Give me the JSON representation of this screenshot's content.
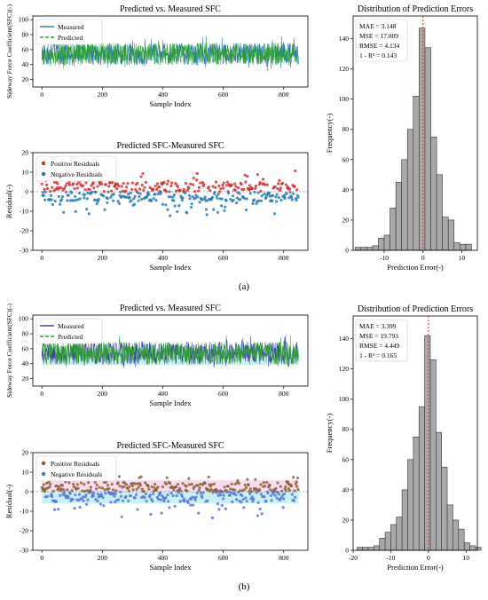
{
  "panel_labels": [
    "(a)",
    "(b)"
  ],
  "colors": {
    "measured_a": "#1f77b4",
    "predicted_a": "#2ca02c",
    "positive_a": "#d62728",
    "negative_a": "#1f77b4",
    "measured_b": "#3a3ab0",
    "predicted_b": "#2ca02c",
    "band_b": "#a8e8f0",
    "res_band_b": "#f4c6e8",
    "positive_b": "#8b5a2b",
    "negative_b": "#4f6fd8",
    "hist_fill": "#a9a9a9",
    "hist_edge": "#333333",
    "zero_line": "#d62728"
  },
  "chart_data": [
    {
      "id": "a-line",
      "type": "line",
      "title": "Predicted vs. Measured SFC",
      "xlabel": "Sample Index",
      "ylabel": "Sideway Force Coefficient(SFC)(-)",
      "xlim": [
        -30,
        880
      ],
      "ylim": [
        10,
        105
      ],
      "xticks": [
        0,
        200,
        400,
        600,
        800
      ],
      "yticks": [
        20,
        40,
        60,
        80,
        100
      ],
      "legend": "top-left",
      "n": 850,
      "range": [
        35,
        78
      ],
      "series": [
        {
          "name": "Measured"
        },
        {
          "name": "Predicted"
        }
      ]
    },
    {
      "id": "a-res",
      "type": "scatter",
      "title": "Predicted SFC-Measured SFC",
      "xlabel": "Sample Index",
      "ylabel": "Residual(-)",
      "xlim": [
        -30,
        880
      ],
      "ylim": [
        -30,
        20
      ],
      "xticks": [
        0,
        200,
        400,
        600,
        800
      ],
      "yticks": [
        -30,
        -20,
        -10,
        0,
        10,
        20
      ],
      "legend": "top-left",
      "n": 850,
      "range": [
        -18,
        12
      ],
      "series": [
        {
          "name": "Positive Residuals"
        },
        {
          "name": "Negative Residuals"
        }
      ]
    },
    {
      "id": "a-hist",
      "type": "bar",
      "title": "Distribution of Prediction Errors",
      "xlabel": "Prediction Error(-)",
      "ylabel": "Frequency(-)",
      "xlim": [
        -18,
        14
      ],
      "ylim": [
        0,
        155
      ],
      "xticks": [
        -10,
        0,
        10
      ],
      "yticks": [
        0,
        20,
        40,
        60,
        80,
        100,
        120,
        140
      ],
      "bin_width": 1.5,
      "bin_edges_start": -17.5,
      "values": [
        2,
        2,
        2,
        3,
        8,
        10,
        28,
        45,
        60,
        80,
        102,
        147,
        134,
        75,
        50,
        22,
        20,
        5,
        4,
        4
      ],
      "stats": [
        "MAE  = 3.148",
        "MSE  = 17.089",
        "RMSE = 4.134",
        "1 - R² = 0.143"
      ]
    },
    {
      "id": "b-line",
      "type": "line",
      "title": "Predicted vs. Measured SFC",
      "xlabel": "Sample Index",
      "ylabel": "Sideway Force Coefficient(SFC)(-)",
      "xlim": [
        -30,
        880
      ],
      "ylim": [
        10,
        105
      ],
      "xticks": [
        0,
        200,
        400,
        600,
        800
      ],
      "yticks": [
        20,
        40,
        60,
        80,
        100
      ],
      "legend": "top-left",
      "n": 850,
      "range": [
        35,
        78
      ],
      "series": [
        {
          "name": "Measured"
        },
        {
          "name": "Predicted"
        }
      ]
    },
    {
      "id": "b-res",
      "type": "scatter",
      "title": "Predicted SFC-Measured SFC",
      "xlabel": "Sample Index",
      "ylabel": "Residual(-)",
      "xlim": [
        -30,
        880
      ],
      "ylim": [
        -30,
        20
      ],
      "xticks": [
        0,
        200,
        400,
        600,
        800
      ],
      "yticks": [
        -30,
        -20,
        -10,
        0,
        10,
        20
      ],
      "legend": "top-left",
      "n": 850,
      "range": [
        -18,
        12
      ],
      "series": [
        {
          "name": "Positive Residuals"
        },
        {
          "name": "Negative Residuals"
        }
      ]
    },
    {
      "id": "b-hist",
      "type": "bar",
      "title": "Distribution of Prediction Errors",
      "xlabel": "Prediction Error(-)",
      "ylabel": "Frequency(-)",
      "xlim": [
        -20,
        13
      ],
      "ylim": [
        0,
        155
      ],
      "xticks": [
        -20,
        -10,
        0,
        10
      ],
      "yticks": [
        0,
        20,
        40,
        60,
        80,
        100,
        120,
        140
      ],
      "bin_width": 1.5,
      "bin_edges_start": -19,
      "values": [
        2,
        2,
        2,
        3,
        8,
        12,
        17,
        22,
        40,
        60,
        75,
        95,
        142,
        126,
        78,
        55,
        30,
        20,
        14,
        5,
        3,
        2
      ],
      "stats": [
        "MAE  = 3.399",
        "MSE  = 19.793",
        "RMSE = 4.449",
        "1 - R² = 0.165"
      ]
    }
  ]
}
